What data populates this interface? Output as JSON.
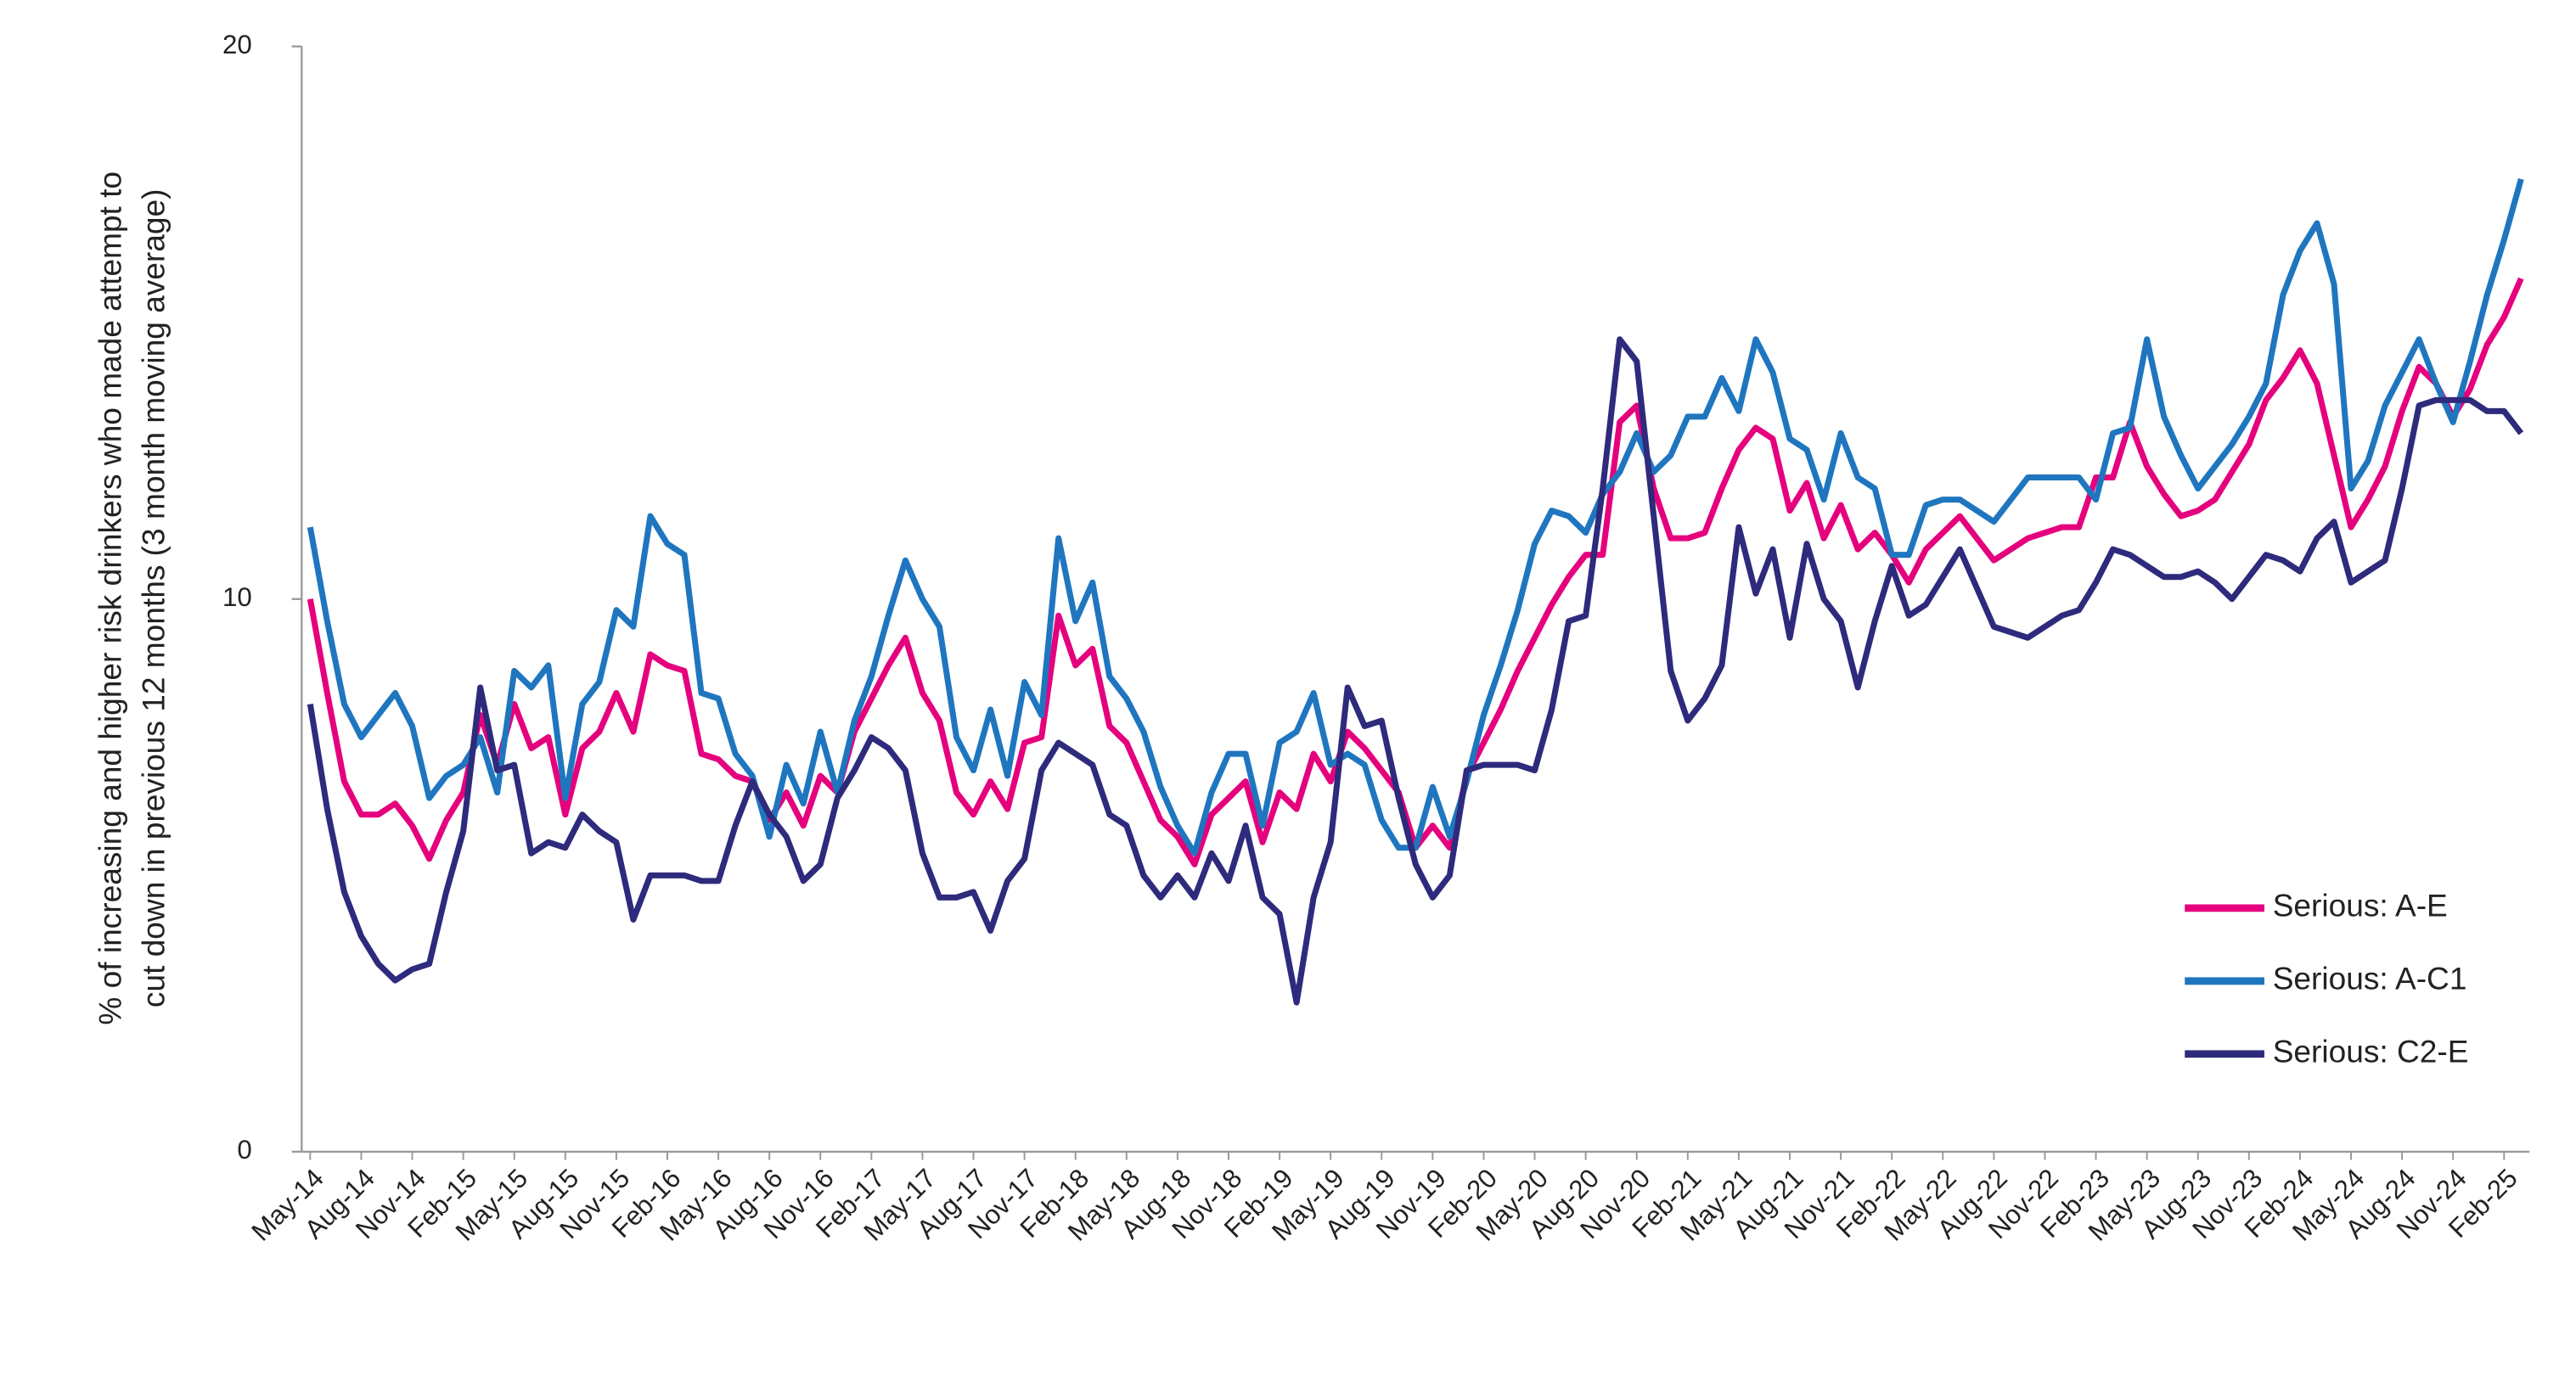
{
  "chart_data": {
    "type": "line",
    "ylabel": [
      "% of increasing and higher risk drinkers who made attempt to",
      "cut down in previous 12 months (3 month moving average)"
    ],
    "categories": [
      "May-14",
      null,
      null,
      "Aug-14",
      null,
      null,
      "Nov-14",
      null,
      null,
      "Feb-15",
      null,
      null,
      "May-15",
      null,
      null,
      "Aug-15",
      null,
      null,
      "Nov-15",
      null,
      null,
      "Feb-16",
      null,
      null,
      "May-16",
      null,
      null,
      "Aug-16",
      null,
      null,
      "Nov-16",
      null,
      null,
      "Feb-17",
      null,
      null,
      "May-17",
      null,
      null,
      "Aug-17",
      null,
      null,
      "Nov-17",
      null,
      null,
      "Feb-18",
      null,
      null,
      "May-18",
      null,
      null,
      "Aug-18",
      null,
      null,
      "Nov-18",
      null,
      null,
      "Feb-19",
      null,
      null,
      "May-19",
      null,
      null,
      "Aug-19",
      null,
      null,
      "Nov-19",
      null,
      null,
      "Feb-20",
      null,
      null,
      "May-20",
      null,
      null,
      "Aug-20",
      null,
      null,
      "Nov-20",
      null,
      null,
      "Feb-21",
      null,
      null,
      "May-21",
      null,
      null,
      "Aug-21",
      null,
      null,
      "Nov-21",
      null,
      null,
      "Feb-22",
      null,
      null,
      "May-22",
      null,
      null,
      "Aug-22",
      null,
      null,
      "Nov-22",
      null,
      null,
      "Feb-23",
      null,
      null,
      "May-23",
      null,
      null,
      "Aug-23",
      null,
      null,
      "Nov-23",
      null,
      null,
      "Feb-24",
      null,
      null,
      "May-24",
      null,
      null,
      "Aug-24",
      null,
      null,
      "Nov-24",
      null,
      null,
      "Feb-25",
      null
    ],
    "series": [
      {
        "name": "Serious: A-E",
        "color": "#e5007d",
        "values": [
          10.0,
          8.3,
          6.7,
          6.1,
          6.1,
          6.3,
          5.9,
          5.3,
          6.0,
          6.5,
          7.9,
          7.0,
          8.1,
          7.3,
          7.5,
          6.1,
          7.3,
          7.6,
          8.3,
          7.6,
          9.0,
          8.8,
          8.7,
          7.2,
          7.1,
          6.8,
          6.7,
          6.0,
          6.5,
          5.9,
          6.8,
          6.5,
          7.6,
          8.2,
          8.8,
          9.3,
          8.3,
          7.8,
          6.5,
          6.1,
          6.7,
          6.2,
          7.4,
          7.5,
          9.7,
          8.8,
          9.1,
          7.7,
          7.4,
          6.7,
          6.0,
          5.7,
          5.2,
          6.1,
          6.4,
          6.7,
          5.6,
          6.5,
          6.2,
          7.2,
          6.7,
          7.6,
          7.3,
          6.9,
          6.5,
          5.5,
          5.9,
          5.5,
          6.8,
          7.4,
          8.0,
          8.7,
          9.3,
          9.9,
          10.4,
          10.8,
          10.8,
          13.2,
          13.5,
          12.0,
          11.1,
          11.1,
          11.2,
          12.0,
          12.7,
          13.1,
          12.9,
          11.6,
          12.1,
          11.1,
          11.7,
          10.9,
          11.2,
          10.8,
          10.3,
          10.9,
          11.2,
          11.5,
          11.1,
          10.7,
          10.9,
          11.1,
          11.2,
          11.3,
          11.3,
          12.2,
          12.2,
          13.2,
          12.4,
          11.9,
          11.5,
          11.6,
          11.8,
          12.3,
          12.8,
          13.6,
          14.0,
          14.5,
          13.9,
          12.6,
          11.3,
          11.8,
          12.4,
          13.4,
          14.2,
          13.9,
          13.3,
          13.8,
          14.6,
          15.1,
          15.8
        ]
      },
      {
        "name": "Serious: A-C1",
        "color": "#1f76bf",
        "values": [
          11.3,
          9.6,
          8.1,
          7.5,
          7.9,
          8.3,
          7.7,
          6.4,
          6.8,
          7.0,
          7.5,
          6.5,
          8.7,
          8.4,
          8.8,
          6.4,
          8.1,
          8.5,
          9.8,
          9.5,
          11.5,
          11.0,
          10.8,
          8.3,
          8.2,
          7.2,
          6.8,
          5.7,
          7.0,
          6.3,
          7.6,
          6.5,
          7.8,
          8.6,
          9.7,
          10.7,
          10.0,
          9.5,
          7.5,
          6.9,
          8.0,
          6.8,
          8.5,
          7.9,
          11.1,
          9.6,
          10.3,
          8.6,
          8.2,
          7.6,
          6.6,
          5.9,
          5.4,
          6.5,
          7.2,
          7.2,
          5.9,
          7.4,
          7.6,
          8.3,
          7.0,
          7.2,
          7.0,
          6.0,
          5.5,
          5.5,
          6.6,
          5.7,
          6.7,
          7.9,
          8.8,
          9.8,
          11.0,
          11.6,
          11.5,
          11.2,
          11.9,
          12.3,
          13.0,
          12.3,
          12.6,
          13.3,
          13.3,
          14.0,
          13.4,
          14.7,
          14.1,
          12.9,
          12.7,
          11.8,
          13.0,
          12.2,
          12.0,
          10.8,
          10.8,
          11.7,
          11.8,
          11.8,
          11.6,
          11.4,
          11.8,
          12.2,
          12.2,
          12.2,
          12.2,
          11.8,
          13.0,
          13.1,
          14.7,
          13.3,
          12.6,
          12.0,
          12.4,
          12.8,
          13.3,
          13.9,
          15.5,
          16.3,
          16.8,
          15.7,
          12.0,
          12.5,
          13.5,
          14.1,
          14.7,
          13.9,
          13.2,
          14.3,
          15.5,
          16.5,
          17.6
        ]
      },
      {
        "name": "Serious: C2-E",
        "color": "#2e2a7c",
        "values": [
          8.1,
          6.2,
          4.7,
          3.9,
          3.4,
          3.1,
          3.3,
          3.4,
          4.7,
          5.8,
          8.4,
          6.9,
          7.0,
          5.4,
          5.6,
          5.5,
          6.1,
          5.8,
          5.6,
          4.2,
          5.0,
          5.0,
          5.0,
          4.9,
          4.9,
          5.9,
          6.7,
          6.1,
          5.7,
          4.9,
          5.2,
          6.4,
          6.9,
          7.5,
          7.3,
          6.9,
          5.4,
          4.6,
          4.6,
          4.7,
          4.0,
          4.9,
          5.3,
          6.9,
          7.4,
          7.2,
          7.0,
          6.1,
          5.9,
          5.0,
          4.6,
          5.0,
          4.6,
          5.4,
          4.9,
          5.9,
          4.6,
          4.3,
          2.7,
          4.6,
          5.6,
          8.4,
          7.7,
          7.8,
          6.4,
          5.2,
          4.6,
          5.0,
          6.9,
          7.0,
          7.0,
          7.0,
          6.9,
          8.0,
          9.6,
          9.7,
          12.0,
          14.7,
          14.3,
          11.5,
          8.7,
          7.8,
          8.2,
          8.8,
          11.3,
          10.1,
          10.9,
          9.3,
          11.0,
          10.0,
          9.6,
          8.4,
          9.6,
          10.6,
          9.7,
          9.9,
          10.4,
          10.9,
          10.2,
          9.5,
          9.4,
          9.3,
          9.5,
          9.7,
          9.8,
          10.3,
          10.9,
          10.8,
          10.6,
          10.4,
          10.4,
          10.5,
          10.3,
          10.0,
          10.4,
          10.8,
          10.7,
          10.5,
          11.1,
          11.4,
          10.3,
          10.5,
          10.7,
          12.0,
          13.5,
          13.6,
          13.6,
          13.6,
          13.4,
          13.4,
          13.0
        ]
      }
    ],
    "ylim": [
      0,
      20
    ],
    "yticks": [
      0,
      10,
      20
    ],
    "grid": false,
    "legend": "right"
  }
}
